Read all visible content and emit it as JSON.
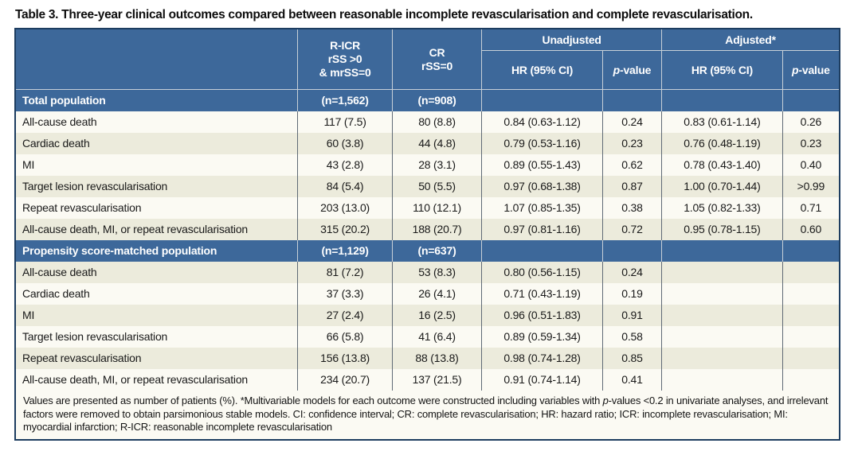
{
  "title": "Table 3. Three-year clinical outcomes compared between reasonable incomplete revascularisation and complete revascularisation.",
  "colors": {
    "header_blue": "#3d689a",
    "outer_border": "#1d3d60",
    "row_white": "#fbfaf3",
    "row_cream": "#ecebdc",
    "header_text": "#ffffff",
    "body_text": "#191919"
  },
  "header": {
    "ricr": "R-ICR\nrSS >0\n& mrSS=0",
    "cr": "CR\nrSS=0",
    "unadjusted": "Unadjusted",
    "adjusted": "Adjusted*",
    "hr": "HR (95% CI)",
    "pvalue": "p-value"
  },
  "sections": [
    {
      "label": "Total population",
      "n_ricr": "(n=1,562)",
      "n_cr": "(n=908)",
      "rows": [
        [
          "All-cause death",
          "117 (7.5)",
          "80 (8.8)",
          "0.84 (0.63-1.12)",
          "0.24",
          "0.83 (0.61-1.14)",
          "0.26"
        ],
        [
          "Cardiac death",
          "60 (3.8)",
          "44 (4.8)",
          "0.79 (0.53-1.16)",
          "0.23",
          "0.76 (0.48-1.19)",
          "0.23"
        ],
        [
          "MI",
          "43 (2.8)",
          "28 (3.1)",
          "0.89 (0.55-1.43)",
          "0.62",
          "0.78 (0.43-1.40)",
          "0.40"
        ],
        [
          "Target lesion revascularisation",
          "84 (5.4)",
          "50 (5.5)",
          "0.97 (0.68-1.38)",
          "0.87",
          "1.00 (0.70-1.44)",
          ">0.99"
        ],
        [
          "Repeat revascularisation",
          "203 (13.0)",
          "110 (12.1)",
          "1.07 (0.85-1.35)",
          "0.38",
          "1.05 (0.82-1.33)",
          "0.71"
        ],
        [
          "All-cause death, MI, or repeat revascularisation",
          "315 (20.2)",
          "188 (20.7)",
          "0.97 (0.81-1.16)",
          "0.72",
          "0.95 (0.78-1.15)",
          "0.60"
        ]
      ]
    },
    {
      "label": "Propensity score-matched population",
      "n_ricr": "(n=1,129)",
      "n_cr": "(n=637)",
      "rows": [
        [
          "All-cause death",
          "81 (7.2)",
          "53 (8.3)",
          "0.80 (0.56-1.15)",
          "0.24",
          "",
          ""
        ],
        [
          "Cardiac death",
          "37 (3.3)",
          "26 (4.1)",
          "0.71 (0.43-1.19)",
          "0.19",
          "",
          ""
        ],
        [
          "MI",
          "27 (2.4)",
          "16 (2.5)",
          "0.96 (0.51-1.83)",
          "0.91",
          "",
          ""
        ],
        [
          "Target lesion revascularisation",
          "66 (5.8)",
          "41 (6.4)",
          "0.89 (0.59-1.34)",
          "0.58",
          "",
          ""
        ],
        [
          "Repeat revascularisation",
          "156 (13.8)",
          "88 (13.8)",
          "0.98 (0.74-1.28)",
          "0.85",
          "",
          ""
        ],
        [
          "All-cause death, MI, or repeat revascularisation",
          "234 (20.7)",
          "137 (21.5)",
          "0.91 (0.74-1.14)",
          "0.41",
          "",
          ""
        ]
      ]
    }
  ],
  "footnote": {
    "pre": "Values are presented as number of patients (%). *Multivariable models for each outcome were constructed including variables with ",
    "italic": "p",
    "post": "-values <0.2 in univariate analyses, and irrelevant factors were removed to obtain parsimonious stable models. CI: confidence interval; CR: complete revascularisation; HR: hazard ratio; ICR: incomplete revascularisation; MI: myocardial infarction; R-ICR: reasonable incomplete revascularisation"
  }
}
